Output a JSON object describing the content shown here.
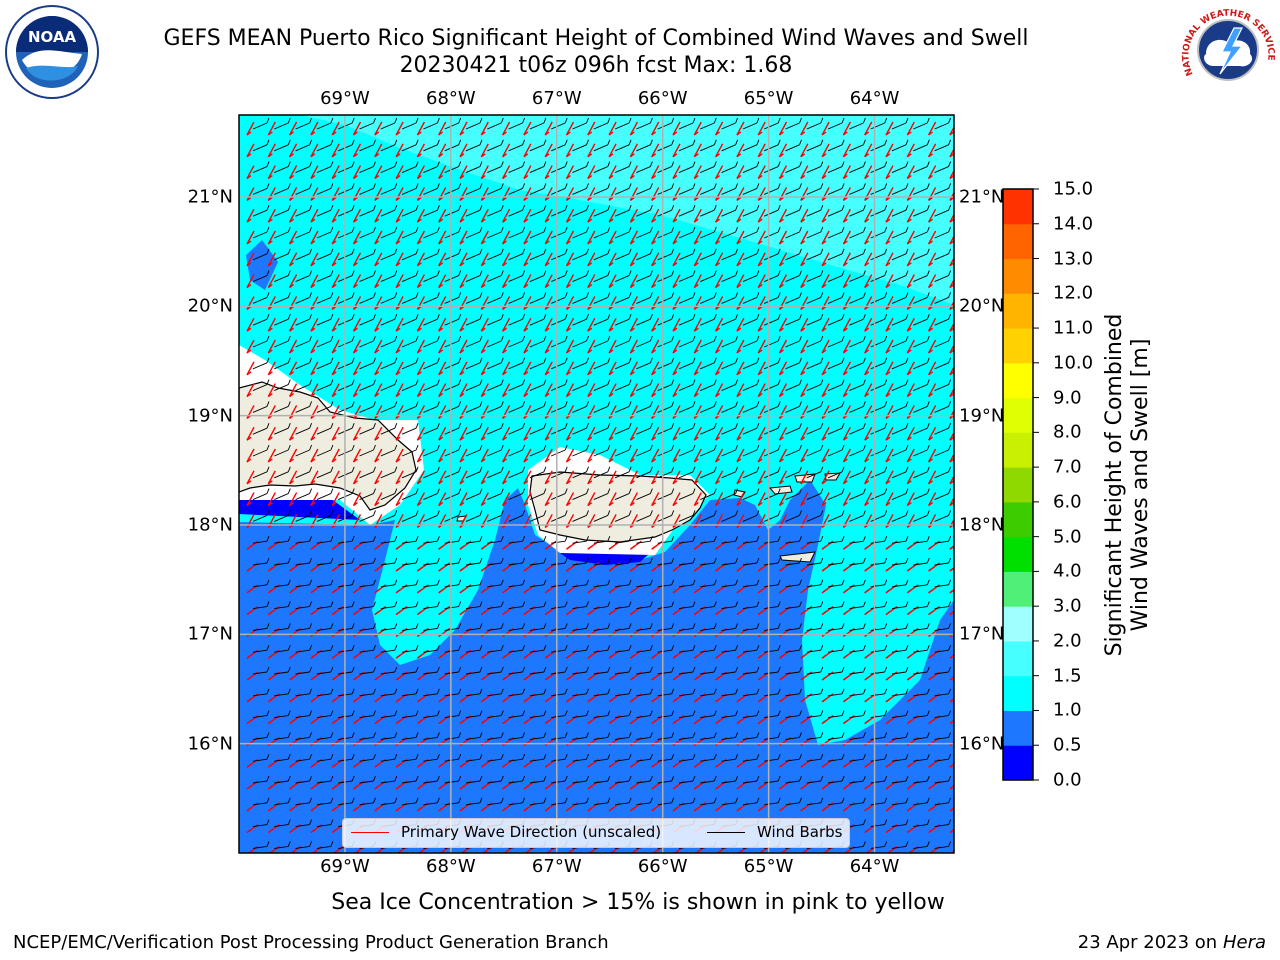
{
  "title": {
    "line1": "GEFS MEAN Puerto Rico Significant Height of Combined Wind Waves and Swell",
    "line2": "20230421 t06z 096h fcst   Max: 1.68"
  },
  "map": {
    "lon_ticks": [
      "69°W",
      "68°W",
      "67°W",
      "66°W",
      "65°W",
      "64°W"
    ],
    "lat_ticks": [
      "21°N",
      "20°N",
      "19°N",
      "18°N",
      "17°N",
      "16°N"
    ],
    "lon_values": [
      -69,
      -68,
      -67,
      -66,
      -65,
      -64
    ],
    "lat_values": [
      21,
      20,
      19,
      18,
      17,
      16
    ],
    "lon_range": [
      -70,
      -63.25
    ],
    "lat_range": [
      15,
      21.75
    ],
    "colors": {
      "land": "#eeeddf",
      "band_0_0_5": "#0000ff",
      "band_0_5_1_0": "#1e78ff",
      "band_1_0_1_5": "#00ffff",
      "band_1_5_2_0": "#46ffff",
      "wave_arrow": "#ff0000",
      "wind_barb": "#000000"
    }
  },
  "legend": {
    "primary_wave": "Primary Wave Direction (unscaled)",
    "wind_barbs": "Wind Barbs"
  },
  "colorbar": {
    "ticks": [
      "15.0",
      "14.0",
      "13.0",
      "12.0",
      "11.0",
      "10.0",
      "9.0",
      "8.0",
      "7.0",
      "6.0",
      "5.0",
      "4.0",
      "3.0",
      "2.0",
      "1.5",
      "1.0",
      "0.5",
      "0.0"
    ],
    "tick_values": [
      15,
      14,
      13,
      12,
      11,
      10,
      9,
      8,
      7,
      6,
      5,
      4,
      3,
      2,
      1.5,
      1,
      0.5,
      0
    ],
    "colors": [
      "#0000ff",
      "#1e78ff",
      "#00ffff",
      "#46ffff",
      "#a0ffff",
      "#50f078",
      "#00e000",
      "#3ccc00",
      "#8fd800",
      "#c8f000",
      "#e0ff00",
      "#ffff00",
      "#ffd200",
      "#ffb400",
      "#ff8c00",
      "#ff6400",
      "#ff3200",
      "#ff0000"
    ],
    "label_line1": "Significant Height of Combined",
    "label_line2": "Wind Waves and Swell [m]"
  },
  "footnote": "Sea Ice Concentration > 15% is shown in pink to yellow",
  "footer": {
    "left": "NCEP/EMC/Verification Post Processing Product Generation Branch",
    "right_date": "23 Apr 2023 on ",
    "right_host": "Hera"
  },
  "logos": {
    "noaa": "NOAA",
    "nws": "NATIONAL WEATHER SERVICE"
  }
}
